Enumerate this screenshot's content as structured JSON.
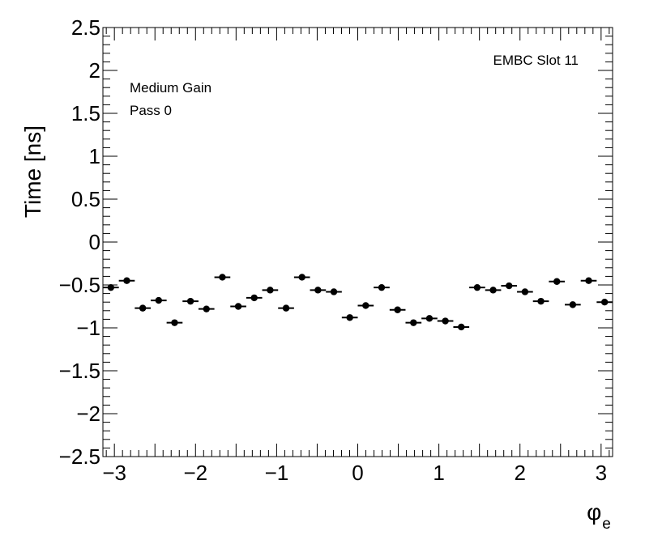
{
  "chart_data": {
    "type": "scatter",
    "title": "",
    "annotations": {
      "top_right": "EMBC Slot 11",
      "gain": "Medium Gain",
      "pass": "Pass 0"
    },
    "xlabel": "φ",
    "xlabel_sub": "e",
    "ylabel": "Time [ns]",
    "xlim": [
      -3.1416,
      3.1416
    ],
    "ylim": [
      -2.5,
      2.5
    ],
    "x_ticks": [
      -3,
      -2,
      -1,
      0,
      1,
      2,
      3
    ],
    "x_tick_labels": [
      "−3",
      "−2",
      "−1",
      "0",
      "1",
      "2",
      "3"
    ],
    "y_ticks": [
      -2.5,
      -2,
      -1.5,
      -1,
      -0.5,
      0,
      0.5,
      1,
      1.5,
      2,
      2.5
    ],
    "y_tick_labels": [
      "−2.5",
      "−2",
      "−1.5",
      "−1",
      "−0.5",
      "0",
      "0.5",
      "1",
      "1.5",
      "2",
      "2.5"
    ],
    "grid": false,
    "bin_width": 0.19635,
    "series": [
      {
        "x": [
          -3.0434,
          -2.8471,
          -2.6507,
          -2.4544,
          -2.258,
          -2.0617,
          -1.8653,
          -1.669,
          -1.4726,
          -1.2763,
          -1.0799,
          -0.8836,
          -0.6872,
          -0.4909,
          -0.2945,
          -0.0982,
          0.0982,
          0.2945,
          0.4909,
          0.6872,
          0.8836,
          1.0799,
          1.2763,
          1.4726,
          1.669,
          1.8653,
          2.0617,
          2.258,
          2.4544,
          2.6507,
          2.8471,
          3.0434
        ],
        "y": [
          -0.53,
          -0.45,
          -0.77,
          -0.68,
          -0.94,
          -0.69,
          -0.78,
          -0.41,
          -0.75,
          -0.65,
          -0.56,
          -0.77,
          -0.41,
          -0.56,
          -0.58,
          -0.88,
          -0.74,
          -0.53,
          -0.79,
          -0.94,
          -0.89,
          -0.92,
          -0.99,
          -0.53,
          -0.56,
          -0.51,
          -0.58,
          -0.69,
          -0.46,
          -0.73,
          -0.45,
          -0.7
        ]
      }
    ]
  }
}
